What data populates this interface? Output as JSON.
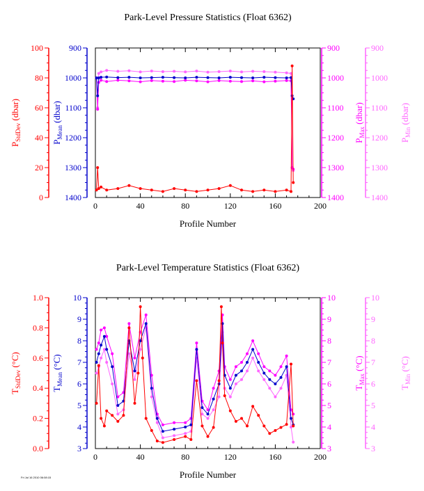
{
  "colors": {
    "red": "#ff0000",
    "blue": "#0000cc",
    "magenta": "#ff00ff",
    "pink": "#ff66ff"
  },
  "footer": "Fri Jul 16 2010 06:08:15",
  "chart_data": [
    {
      "type": "line",
      "title": "Park-Level Pressure Statistics (Float 6362)",
      "xlabel": "Profile Number",
      "xlim": [
        0,
        200
      ],
      "xticks": [
        "0",
        "40",
        "80",
        "120",
        "160",
        "200"
      ],
      "left_axes": [
        {
          "var": "P",
          "sub": "StdDev",
          "unit": " (dbar)",
          "ticks": [
            "100",
            "80",
            "60",
            "40",
            "20",
            "0"
          ],
          "lim": [
            0,
            100
          ],
          "inverted": false,
          "color_key": "red"
        },
        {
          "var": "P",
          "sub": "Mean",
          "unit": " (dbar)",
          "ticks": [
            "900",
            "1000",
            "1100",
            "1200",
            "1300",
            "1400"
          ],
          "lim": [
            900,
            1400
          ],
          "inverted": true,
          "color_key": "blue"
        }
      ],
      "right_axes": [
        {
          "var": "P",
          "sub": "Max",
          "unit": " (dbar)",
          "ticks": [
            "900",
            "1000",
            "1100",
            "1200",
            "1300",
            "1400"
          ],
          "lim": [
            900,
            1400
          ],
          "inverted": true,
          "color_key": "magenta"
        },
        {
          "var": "P",
          "sub": "Min",
          "unit": " (dbar)",
          "ticks": [
            "900",
            "1000",
            "1100",
            "1200",
            "1300",
            "1400"
          ],
          "lim": [
            900,
            1400
          ],
          "inverted": true,
          "color_key": "pink"
        }
      ],
      "series": [
        {
          "axis": "P_Min",
          "color_key": "pink",
          "x": [
            1,
            2,
            3,
            5,
            10,
            20,
            30,
            40,
            50,
            60,
            70,
            80,
            90,
            100,
            110,
            120,
            130,
            140,
            150,
            160,
            170,
            174,
            175,
            176
          ],
          "y": [
            1000,
            1100,
            985,
            980,
            975,
            978,
            976,
            980,
            977,
            979,
            978,
            980,
            977,
            981,
            979,
            977,
            980,
            978,
            979,
            981,
            983,
            985,
            1300,
            1310
          ]
        },
        {
          "axis": "P_Max",
          "color_key": "magenta",
          "x": [
            1,
            2,
            3,
            5,
            10,
            20,
            30,
            40,
            50,
            60,
            70,
            80,
            90,
            100,
            110,
            120,
            130,
            140,
            150,
            160,
            170,
            174,
            175,
            176
          ],
          "y": [
            1000,
            1105,
            1015,
            1008,
            1012,
            1008,
            1010,
            1013,
            1009,
            1011,
            1012,
            1008,
            1010,
            1013,
            1009,
            1011,
            1012,
            1010,
            1013,
            1011,
            1009,
            1010,
            1300,
            1305
          ]
        },
        {
          "axis": "P_Mean",
          "color_key": "blue",
          "x": [
            1,
            2,
            3,
            5,
            10,
            20,
            30,
            40,
            50,
            60,
            70,
            80,
            90,
            100,
            110,
            120,
            130,
            140,
            150,
            160,
            170,
            174,
            175,
            176
          ],
          "y": [
            1000,
            1060,
            1000,
            998,
            997,
            999,
            998,
            1000,
            999,
            998,
            999,
            1000,
            998,
            999,
            1000,
            998,
            999,
            1000,
            998,
            999,
            1000,
            999,
            1060,
            1070
          ]
        },
        {
          "axis": "P_StdDev",
          "color_key": "red",
          "x": [
            1,
            2,
            3,
            5,
            10,
            20,
            30,
            40,
            50,
            60,
            70,
            80,
            90,
            100,
            110,
            120,
            130,
            140,
            150,
            160,
            170,
            174,
            175,
            176
          ],
          "y": [
            5,
            20,
            6,
            7,
            5,
            6,
            8,
            6,
            5,
            4,
            6,
            5,
            4,
            5,
            6,
            8,
            5,
            4,
            5,
            4,
            5,
            4,
            88,
            10
          ]
        }
      ]
    },
    {
      "type": "line",
      "title": "Park-Level Temperature Statistics (Float 6362)",
      "xlabel": "Profile Number",
      "xlim": [
        0,
        200
      ],
      "xticks": [
        "0",
        "40",
        "80",
        "120",
        "160",
        "200"
      ],
      "left_axes": [
        {
          "var": "T",
          "sub": "StdDev",
          "unit": " (°C)",
          "ticks": [
            "1.0",
            "0.8",
            "0.6",
            "0.4",
            "0.2",
            "0.0"
          ],
          "lim": [
            0,
            1
          ],
          "inverted": false,
          "color_key": "red"
        },
        {
          "var": "T",
          "sub": "Mean",
          "unit": " (°C)",
          "ticks": [
            "10",
            "9",
            "8",
            "7",
            "6",
            "5",
            "4",
            "3"
          ],
          "lim": [
            3,
            10
          ],
          "inverted": false,
          "color_key": "blue"
        }
      ],
      "right_axes": [
        {
          "var": "T",
          "sub": "Max",
          "unit": " (°C)",
          "ticks": [
            "10",
            "9",
            "8",
            "7",
            "6",
            "5",
            "4",
            "3"
          ],
          "lim": [
            3,
            10
          ],
          "inverted": false,
          "color_key": "magenta"
        },
        {
          "var": "T",
          "sub": "Min",
          "unit": " (°C)",
          "ticks": [
            "10",
            "9",
            "8",
            "7",
            "6",
            "5",
            "4",
            "3"
          ],
          "lim": [
            3,
            10
          ],
          "inverted": false,
          "color_key": "pink"
        }
      ],
      "series": [
        {
          "axis": "T_Min",
          "color_key": "pink",
          "x": [
            1,
            3,
            5,
            8,
            10,
            15,
            20,
            25,
            30,
            35,
            40,
            45,
            50,
            55,
            60,
            70,
            80,
            85,
            90,
            95,
            100,
            105,
            110,
            113,
            115,
            120,
            125,
            130,
            135,
            140,
            145,
            150,
            155,
            160,
            165,
            170,
            174,
            176
          ],
          "y": [
            6.5,
            6.8,
            7.2,
            7.6,
            7.0,
            6.0,
            4.6,
            4.8,
            7.4,
            6.2,
            7.6,
            8.6,
            5.4,
            4.2,
            3.5,
            3.6,
            3.7,
            3.8,
            7.2,
            4.6,
            4.4,
            4.8,
            5.4,
            8.4,
            5.8,
            5.4,
            6.0,
            6.2,
            6.6,
            7.2,
            6.6,
            6.2,
            5.8,
            5.4,
            5.8,
            6.4,
            4.0,
            3.3
          ]
        },
        {
          "axis": "T_Max",
          "color_key": "magenta",
          "x": [
            1,
            3,
            5,
            8,
            10,
            15,
            20,
            25,
            30,
            35,
            40,
            45,
            50,
            55,
            60,
            70,
            80,
            85,
            90,
            95,
            100,
            105,
            110,
            113,
            115,
            120,
            125,
            130,
            135,
            140,
            145,
            150,
            155,
            160,
            165,
            170,
            174,
            176
          ],
          "y": [
            7.6,
            7.9,
            8.5,
            8.6,
            8.2,
            7.4,
            5.4,
            5.6,
            8.8,
            7.2,
            8.4,
            9.2,
            6.4,
            4.6,
            4.1,
            4.2,
            4.2,
            4.4,
            7.9,
            5.2,
            4.8,
            5.8,
            6.6,
            9.2,
            6.8,
            6.2,
            6.8,
            7.0,
            7.4,
            8.0,
            7.4,
            6.8,
            6.6,
            6.4,
            6.8,
            7.3,
            4.8,
            4.6
          ]
        },
        {
          "axis": "T_Mean",
          "color_key": "blue",
          "x": [
            1,
            3,
            5,
            8,
            10,
            15,
            20,
            25,
            30,
            35,
            40,
            45,
            50,
            55,
            60,
            70,
            80,
            85,
            90,
            95,
            100,
            105,
            110,
            113,
            115,
            120,
            125,
            130,
            135,
            140,
            145,
            150,
            155,
            160,
            165,
            170,
            174,
            176
          ],
          "y": [
            7.0,
            7.4,
            7.8,
            8.2,
            7.6,
            6.8,
            5.0,
            5.2,
            8.0,
            6.6,
            8.0,
            8.8,
            5.8,
            4.4,
            3.8,
            3.9,
            4.0,
            4.1,
            7.6,
            4.9,
            4.6,
            5.3,
            6.0,
            8.8,
            6.4,
            5.8,
            6.4,
            6.6,
            7.0,
            7.6,
            7.0,
            6.5,
            6.2,
            6.0,
            6.3,
            6.8,
            4.4,
            4.1
          ]
        },
        {
          "axis": "T_StdDev",
          "color_key": "red",
          "x": [
            1,
            3,
            5,
            8,
            10,
            15,
            20,
            25,
            30,
            35,
            38,
            40,
            42,
            45,
            50,
            55,
            60,
            70,
            80,
            85,
            90,
            95,
            100,
            105,
            110,
            112,
            113,
            115,
            120,
            125,
            130,
            135,
            140,
            145,
            150,
            155,
            160,
            165,
            170,
            174,
            176
          ],
          "y": [
            0.3,
            0.55,
            0.2,
            0.15,
            0.25,
            0.22,
            0.18,
            0.22,
            0.8,
            0.3,
            0.5,
            0.94,
            0.6,
            0.2,
            0.12,
            0.05,
            0.04,
            0.06,
            0.08,
            0.06,
            0.45,
            0.15,
            0.08,
            0.14,
            0.45,
            0.94,
            0.7,
            0.35,
            0.25,
            0.18,
            0.2,
            0.15,
            0.28,
            0.22,
            0.15,
            0.1,
            0.12,
            0.14,
            0.16,
            0.56,
            0.15
          ]
        }
      ]
    }
  ]
}
